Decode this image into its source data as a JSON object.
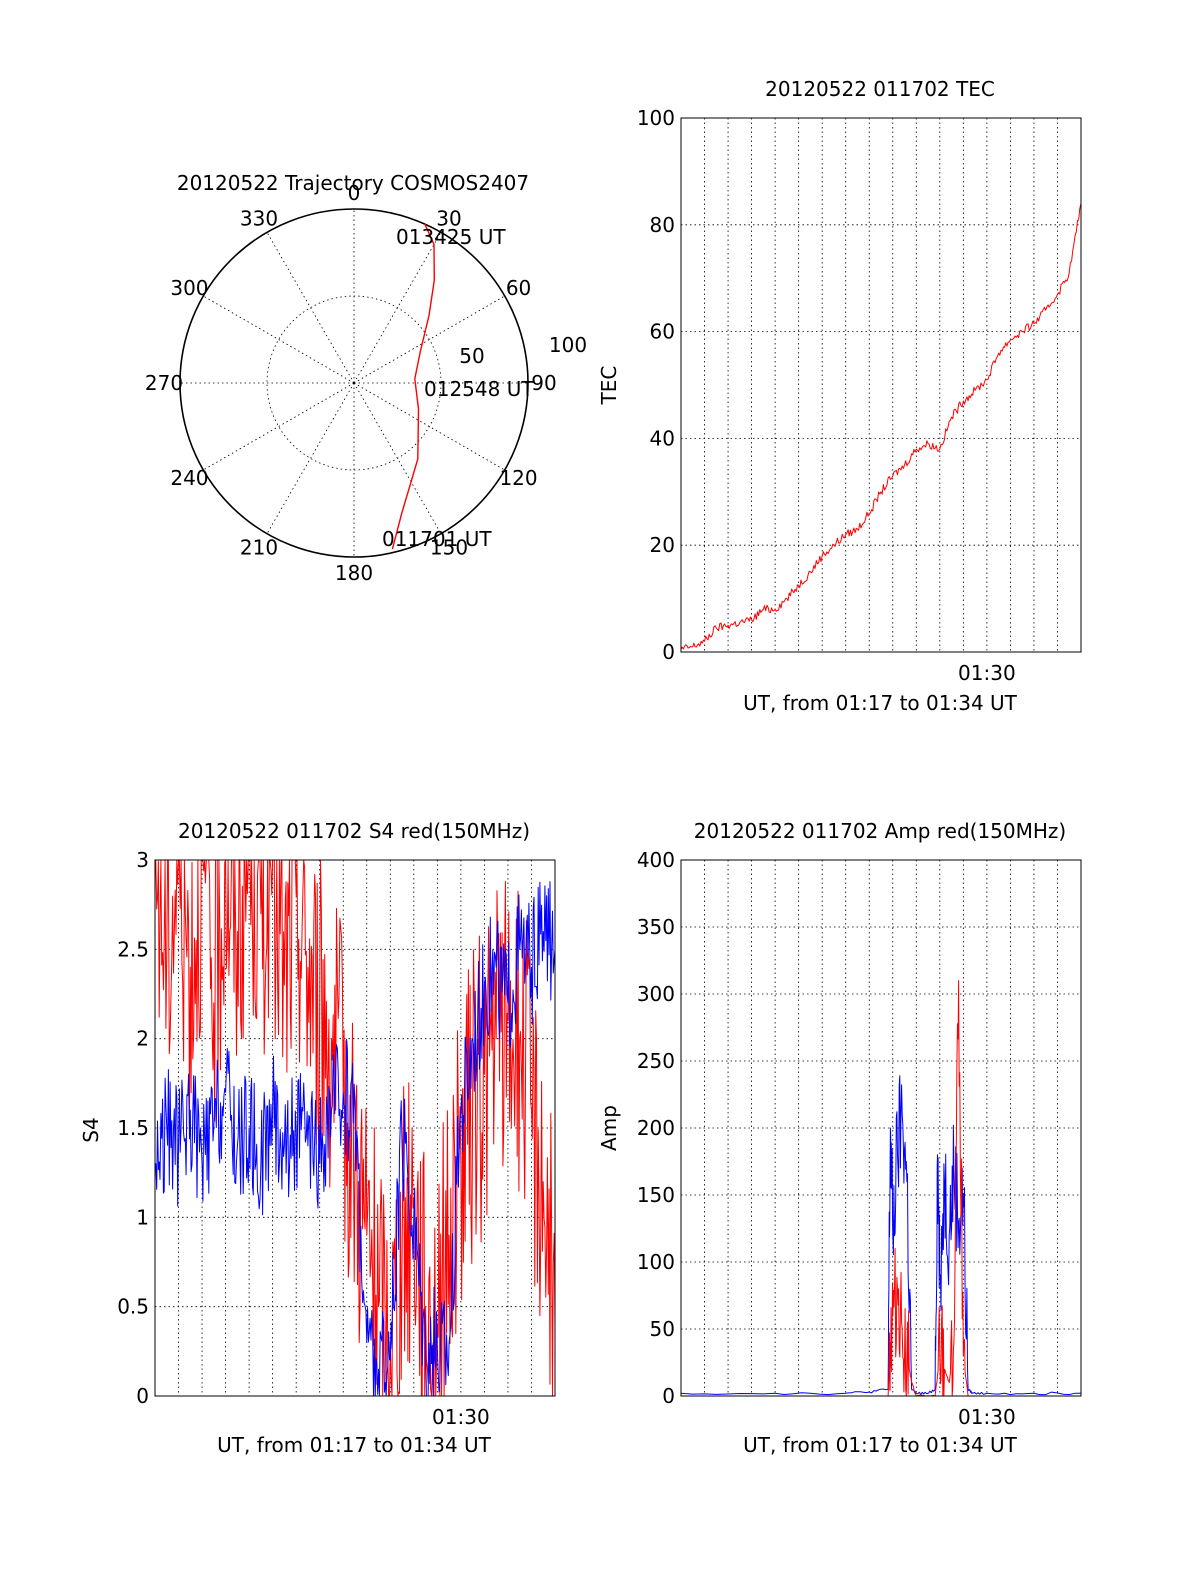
{
  "chart_data": [
    {
      "type": "polar",
      "title": "20120522 Trajectory COSMOS2407",
      "angle_labels": [
        "0",
        "30",
        "60",
        "90",
        "120",
        "150",
        "180",
        "210",
        "240",
        "270",
        "300",
        "330"
      ],
      "radius_labels": [
        "50",
        "100"
      ],
      "rlim": [
        0,
        100
      ],
      "grid": true,
      "series": [
        {
          "color": "#ff0000",
          "azimuth": [
            167,
            160,
            140,
            112,
            86,
            65,
            48,
            38,
            30,
            24
          ],
          "zenith": [
            98,
            80,
            57,
            40,
            35,
            42,
            58,
            75,
            92,
            100
          ]
        }
      ],
      "annotations": [
        "013425 UT",
        "012548 UT",
        "011701 UT"
      ]
    },
    {
      "type": "line",
      "title": "20120522 011702 TEC",
      "xlabel": "UT, from 01:17 to 01:34 UT",
      "ylabel": "TEC",
      "xlim": [
        0,
        17
      ],
      "ylim": [
        0,
        100
      ],
      "yticks": [
        "0",
        "20",
        "40",
        "60",
        "80",
        "100"
      ],
      "xtick_labels": [
        {
          "x": 13,
          "label": "01:30"
        }
      ],
      "grid": true,
      "series": [
        {
          "color": "#ff0000",
          "x": [
            0,
            0.5,
            1,
            1.5,
            2,
            2.5,
            3,
            3.5,
            4,
            4.5,
            5,
            5.5,
            6,
            6.5,
            7,
            7.5,
            8,
            8.5,
            9,
            9.5,
            10,
            10.5,
            11,
            11.5,
            12,
            12.5,
            13,
            13.5,
            14,
            14.5,
            15,
            15.5,
            16,
            16.5,
            17
          ],
          "y": [
            0.5,
            1,
            2,
            4.5,
            5,
            5.5,
            6,
            8,
            8,
            10,
            12.5,
            15,
            18,
            20,
            22,
            23,
            26,
            30,
            33,
            35,
            38,
            39,
            38,
            44,
            47,
            49,
            51,
            56,
            58.5,
            60,
            61.5,
            64,
            67,
            71,
            84
          ]
        }
      ]
    },
    {
      "type": "line",
      "title": "20120522 011702 S4 red(150MHz)",
      "xlabel": "UT, from 01:17 to 01:34 UT",
      "ylabel": "S4",
      "xlim": [
        0,
        17
      ],
      "ylim": [
        0,
        3
      ],
      "yticks": [
        "0",
        "0.5",
        "1",
        "1.5",
        "2",
        "2.5",
        "3"
      ],
      "xtick_labels": [
        {
          "x": 13,
          "label": "01:30"
        }
      ],
      "grid": true,
      "series": [
        {
          "color": "#ff0000",
          "x": [
            0,
            0.5,
            1,
            1.5,
            2,
            2.5,
            3,
            3.5,
            4,
            4.5,
            5,
            5.5,
            6,
            6.5,
            7,
            7.5,
            8,
            8.5,
            9,
            9.5,
            10,
            10.5,
            11,
            11.5,
            12,
            12.5,
            13,
            13.5,
            14,
            14.5,
            15,
            15.5,
            16,
            16.5,
            17
          ],
          "y": [
            3,
            2.5,
            3,
            2.4,
            3,
            2.2,
            3,
            2.6,
            3,
            2.7,
            3,
            2.3,
            2.8,
            2.4,
            2.2,
            2.0,
            1.7,
            1.3,
            0.9,
            0.5,
            0.3,
            0.8,
            1.1,
            0.5,
            0.4,
            0.9,
            1.3,
            1.6,
            1.8,
            2.0,
            2.1,
            2.0,
            1.6,
            1.2,
            0.4
          ]
        },
        {
          "color": "#0000ff",
          "x": [
            0,
            0.5,
            1,
            1.5,
            2,
            2.5,
            3,
            3.5,
            4,
            4.5,
            5,
            5.5,
            6,
            6.5,
            7,
            7.5,
            8,
            8.5,
            9,
            9.5,
            10,
            10.5,
            11,
            11.5,
            12,
            12.5,
            13,
            13.5,
            14,
            14.5,
            15,
            15.5,
            16,
            16.5,
            17
          ],
          "y": [
            1.3,
            1.5,
            1.4,
            1.6,
            1.3,
            1.5,
            1.7,
            1.4,
            1.5,
            1.3,
            1.6,
            1.4,
            1.5,
            1.4,
            1.3,
            1.6,
            1.7,
            1.6,
            0.3,
            0.15,
            0.2,
            1.4,
            1.0,
            0.3,
            0.25,
            0.3,
            1.6,
            2.0,
            2.3,
            2.4,
            2.2,
            2.5,
            2.4,
            2.6,
            2.5
          ]
        }
      ]
    },
    {
      "type": "line",
      "title": "20120522 011702 Amp red(150MHz)",
      "xlabel": "UT, from 01:17 to 01:34 UT",
      "ylabel": "Amp",
      "xlim": [
        0,
        17
      ],
      "ylim": [
        0,
        400
      ],
      "yticks": [
        "0",
        "50",
        "100",
        "150",
        "200",
        "250",
        "300",
        "350",
        "400"
      ],
      "xtick_labels": [
        {
          "x": 13,
          "label": "01:30"
        }
      ],
      "grid": true,
      "series": [
        {
          "color": "#0000ff",
          "x": [
            0,
            4,
            7,
            8,
            8.8,
            8.9,
            9.0,
            9.2,
            9.4,
            9.6,
            9.8,
            10.0,
            10.5,
            10.8,
            10.9,
            11.0,
            11.2,
            11.4,
            11.6,
            11.8,
            12.0,
            12.2,
            12.4,
            13,
            15,
            17
          ],
          "y": [
            2,
            2,
            2,
            3,
            5,
            200,
            120,
            180,
            210,
            160,
            5,
            2,
            2,
            5,
            180,
            90,
            160,
            120,
            170,
            130,
            150,
            5,
            2,
            2,
            2,
            2
          ]
        },
        {
          "color": "#ff0000",
          "x": [
            8.8,
            8.9,
            9.0,
            9.2,
            9.4,
            9.6,
            9.8,
            10.0,
            10.8,
            11.0,
            11.2,
            11.4,
            11.6,
            11.8,
            12.0,
            12.2
          ],
          "y": [
            0,
            40,
            60,
            80,
            50,
            30,
            10,
            0,
            0,
            30,
            20,
            10,
            40,
            310,
            30,
            0
          ]
        }
      ]
    }
  ]
}
